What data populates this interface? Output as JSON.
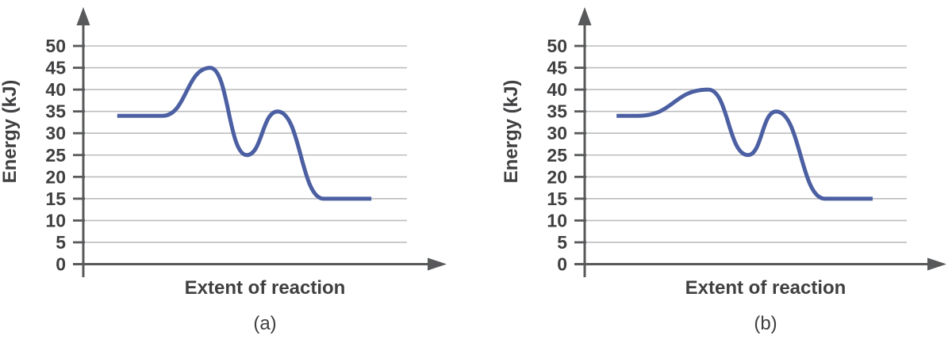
{
  "figure": {
    "description": "Two reaction-coordinate energy diagrams shown side by side, each with a two-step energy profile curve over horizontal gridlines.",
    "background_color": "#ffffff"
  },
  "colors": {
    "curve": "#4b5fa2",
    "axis": "#58595b",
    "grid": "#bcbdbf",
    "text": "#404042"
  },
  "chart_data": [
    {
      "type": "line",
      "title": "(a)",
      "xlabel": "Extent of reaction",
      "ylabel": "Energy (kJ)",
      "ylim": [
        0,
        50
      ],
      "yticks": [
        0,
        5,
        10,
        15,
        20,
        25,
        30,
        35,
        40,
        45,
        50
      ],
      "grid": "horizontal gridlines at every 5 kJ tick",
      "legend": "none",
      "series": [
        {
          "name": "energy profile (a)",
          "color": "#4b5fa2",
          "key_values_kJ": {
            "reactants": 34,
            "transition_state_1": 45,
            "intermediate": 25,
            "transition_state_2": 35,
            "products": 15
          },
          "profile": [
            [
              0.105,
              34
            ],
            [
              0.245,
              34
            ],
            [
              0.392,
              45
            ],
            [
              0.505,
              25
            ],
            [
              0.6,
              35
            ],
            [
              0.743,
              15
            ],
            [
              0.89,
              15
            ]
          ]
        }
      ]
    },
    {
      "type": "line",
      "title": "(b)",
      "xlabel": "Extent of reaction",
      "ylabel": "Energy (kJ)",
      "ylim": [
        0,
        50
      ],
      "yticks": [
        0,
        5,
        10,
        15,
        20,
        25,
        30,
        35,
        40,
        45,
        50
      ],
      "grid": "horizontal gridlines at every 5 kJ tick",
      "legend": "none",
      "series": [
        {
          "name": "energy profile (b)",
          "color": "#4b5fa2",
          "key_values_kJ": {
            "reactants": 34,
            "transition_state_1": 40,
            "intermediate": 25,
            "transition_state_2": 35,
            "products": 15
          },
          "profile": [
            [
              0.099,
              34
            ],
            [
              0.167,
              34
            ],
            [
              0.384,
              40
            ],
            [
              0.507,
              25
            ],
            [
              0.594,
              35
            ],
            [
              0.746,
              15
            ],
            [
              0.894,
              15
            ]
          ]
        }
      ]
    }
  ]
}
